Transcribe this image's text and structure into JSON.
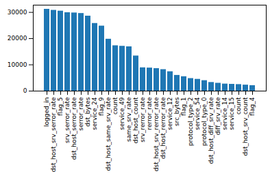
{
  "chart_data": {
    "type": "bar",
    "categories": [
      "logged_in",
      "dst_host_srv_serror_rate",
      "flag_5",
      "srv_serror_rate",
      "dst_host_serror_rate",
      "serror_rate",
      "dst_bytes",
      "service_24",
      "flag_9",
      "dst_host_same_srv_rate",
      "count",
      "service_49",
      "same_srv_rate",
      "dst_host_count",
      "srv_rerror_rate",
      "rerror_rate",
      "dst_host_srv_rerror_rate",
      "dst_host_rerror_rate",
      "service_12",
      "src_bytes",
      "flag_1",
      "protocol_type_2",
      "service_54",
      "protocol_type_0",
      "dst_host_diff_srv_rate",
      "diff_srv_rate",
      "service_14",
      "service_15",
      "count",
      "dst_host_srv_count",
      "flag_4"
    ],
    "values": [
      31200,
      30800,
      30500,
      29900,
      29800,
      29600,
      28600,
      25800,
      24800,
      19800,
      17300,
      17100,
      16900,
      13400,
      8900,
      8800,
      8600,
      8200,
      7400,
      6000,
      5500,
      4800,
      4500,
      4000,
      3300,
      3000,
      2700,
      2600,
      2500,
      2300,
      2100
    ],
    "color": "#1f77b4",
    "ylim": [
      0,
      32760
    ],
    "yticks": [
      0,
      10000,
      20000,
      30000
    ],
    "grid": false
  }
}
